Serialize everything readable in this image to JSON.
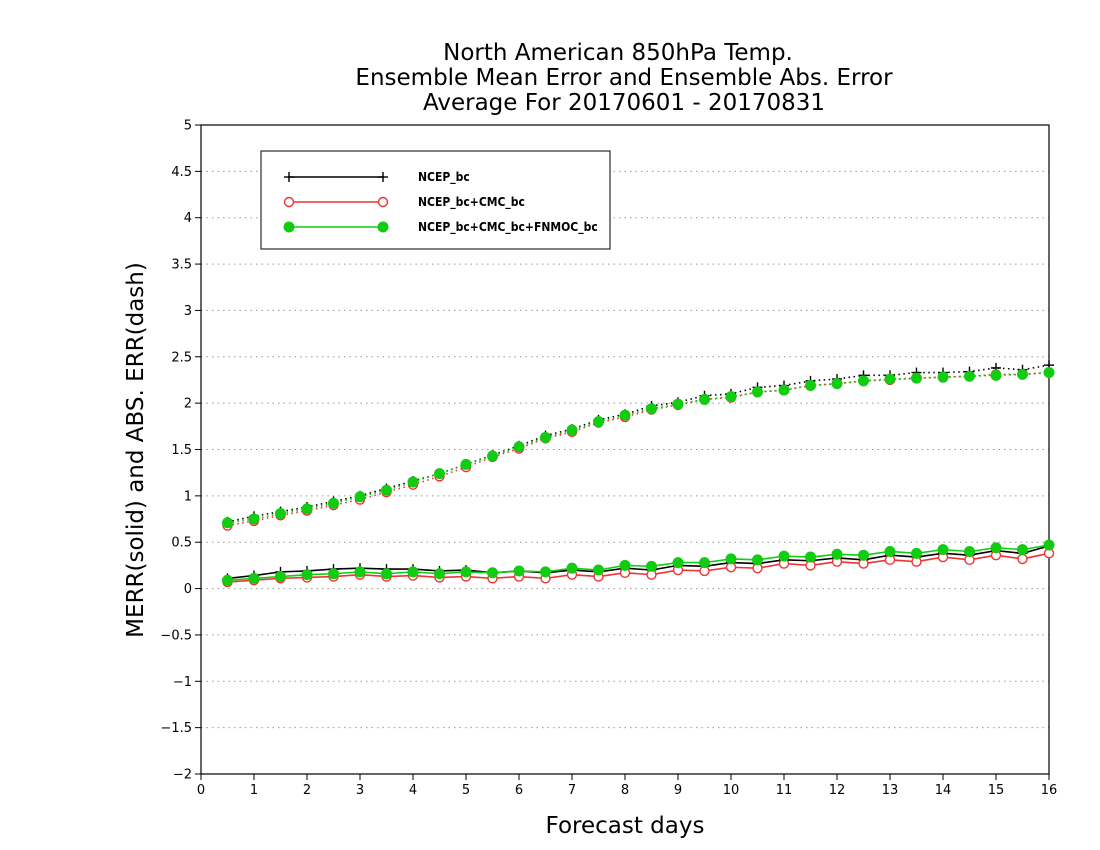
{
  "chart_data": {
    "type": "line",
    "title": [
      "North American 850hPa Temp.",
      "Ensemble Mean Error and Ensemble Abs. Error",
      "Average For 20170601 - 20170831"
    ],
    "xlabel": "Forecast days",
    "ylabel": "MERR(solid) and ABS. ERR(dash)",
    "xlim": [
      0,
      16
    ],
    "ylim": [
      -2,
      5
    ],
    "xticks": [
      0,
      1,
      2,
      3,
      4,
      5,
      6,
      7,
      8,
      9,
      10,
      11,
      12,
      13,
      14,
      15,
      16
    ],
    "yticks": [
      -2,
      -1.5,
      -1,
      -0.5,
      0,
      0.5,
      1,
      1.5,
      2,
      2.5,
      3,
      3.5,
      4,
      4.5,
      5
    ],
    "ytick_labels": [
      "−2",
      "−1.5",
      "−1",
      "−0.5",
      "0",
      "0.5",
      "1",
      "1.5",
      "2",
      "2.5",
      "3",
      "3.5",
      "4",
      "4.5",
      "5"
    ],
    "grid": "horizontal dotted",
    "legend_position": "top-left",
    "x": [
      0.5,
      1,
      1.5,
      2,
      2.5,
      3,
      3.5,
      4,
      4.5,
      5,
      5.5,
      6,
      6.5,
      7,
      7.5,
      8,
      8.5,
      9,
      9.5,
      10,
      10.5,
      11,
      11.5,
      12,
      12.5,
      13,
      13.5,
      14,
      14.5,
      15,
      15.5,
      16
    ],
    "series": [
      {
        "name": "NCEP_bc",
        "color": "#000000",
        "marker": "plus",
        "merr": [
          0.11,
          0.14,
          0.18,
          0.19,
          0.21,
          0.22,
          0.21,
          0.21,
          0.19,
          0.2,
          0.17,
          0.19,
          0.17,
          0.2,
          0.18,
          0.22,
          0.2,
          0.25,
          0.24,
          0.28,
          0.27,
          0.31,
          0.3,
          0.33,
          0.31,
          0.36,
          0.34,
          0.38,
          0.36,
          0.41,
          0.38,
          0.46
        ],
        "abs_err": [
          0.72,
          0.78,
          0.83,
          0.88,
          0.94,
          1.0,
          1.08,
          1.16,
          1.24,
          1.34,
          1.44,
          1.54,
          1.65,
          1.72,
          1.82,
          1.88,
          1.97,
          2.01,
          2.08,
          2.1,
          2.17,
          2.19,
          2.24,
          2.26,
          2.3,
          2.3,
          2.33,
          2.33,
          2.34,
          2.38,
          2.36,
          2.41
        ]
      },
      {
        "name": "NCEP_bc+CMC_bc",
        "color": "#ee3333",
        "marker": "open-circle",
        "merr": [
          0.07,
          0.09,
          0.11,
          0.12,
          0.13,
          0.15,
          0.13,
          0.14,
          0.12,
          0.13,
          0.11,
          0.13,
          0.11,
          0.15,
          0.13,
          0.17,
          0.15,
          0.2,
          0.19,
          0.23,
          0.22,
          0.27,
          0.25,
          0.29,
          0.27,
          0.31,
          0.29,
          0.34,
          0.31,
          0.36,
          0.32,
          0.38
        ],
        "abs_err": [
          0.68,
          0.73,
          0.79,
          0.84,
          0.9,
          0.96,
          1.04,
          1.12,
          1.21,
          1.31,
          1.42,
          1.51,
          1.62,
          1.69,
          1.79,
          1.85,
          1.93,
          1.98,
          2.04,
          2.06,
          2.12,
          2.14,
          2.19,
          2.21,
          2.24,
          2.25,
          2.27,
          2.28,
          2.29,
          2.31,
          2.31,
          2.33
        ]
      },
      {
        "name": "NCEP_bc+CMC_bc+FNMOC_bc",
        "color": "#11cc11",
        "marker": "filled-circle",
        "merr": [
          0.09,
          0.11,
          0.13,
          0.15,
          0.16,
          0.18,
          0.16,
          0.18,
          0.16,
          0.18,
          0.17,
          0.19,
          0.18,
          0.22,
          0.2,
          0.25,
          0.24,
          0.28,
          0.28,
          0.32,
          0.31,
          0.35,
          0.34,
          0.37,
          0.36,
          0.4,
          0.38,
          0.42,
          0.4,
          0.44,
          0.42,
          0.47
        ],
        "abs_err": [
          0.71,
          0.75,
          0.81,
          0.86,
          0.92,
          0.99,
          1.06,
          1.15,
          1.24,
          1.34,
          1.43,
          1.53,
          1.63,
          1.71,
          1.8,
          1.87,
          1.94,
          1.99,
          2.04,
          2.07,
          2.12,
          2.14,
          2.19,
          2.21,
          2.24,
          2.26,
          2.27,
          2.28,
          2.29,
          2.3,
          2.31,
          2.33
        ]
      }
    ]
  }
}
